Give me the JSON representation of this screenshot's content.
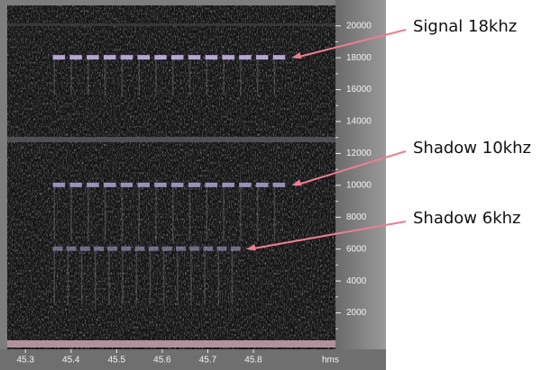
{
  "chart_data": {
    "type": "spectrogram",
    "x_label": "hms",
    "xlim": [
      45.26,
      45.98
    ],
    "xticks": [
      45.3,
      45.4,
      45.5,
      45.6,
      45.7,
      45.8
    ],
    "ylim": [
      0,
      21000
    ],
    "yticks": [
      2000,
      4000,
      6000,
      8000,
      10000,
      12000,
      14000,
      16000,
      18000,
      20000
    ],
    "annotations": [
      {
        "text": "Signal 18khz",
        "y": 18000,
        "x_start": 45.36,
        "x_end": 45.88
      },
      {
        "text": "Shadow 10khz",
        "y": 10000,
        "x_start": 45.36,
        "x_end": 45.88
      },
      {
        "text": "Shadow 6khz",
        "y": 6000,
        "x_start": 45.36,
        "x_end": 45.78
      }
    ]
  }
}
